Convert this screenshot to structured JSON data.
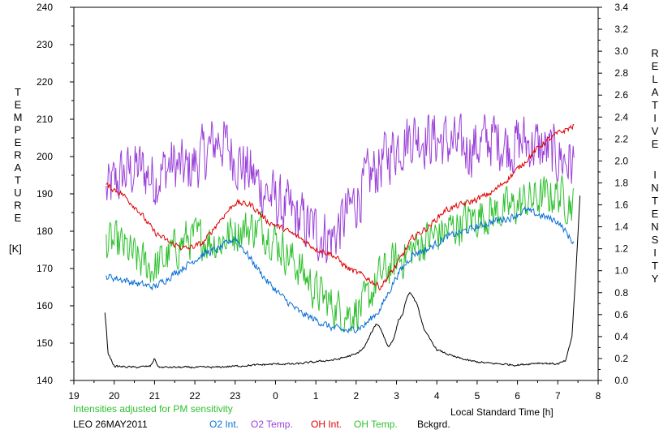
{
  "chart_data": {
    "type": "line",
    "title": "",
    "subtitle": "Intensities adjusted for PM sensitivity",
    "site_date": "LEO 26MAY2011",
    "xlabel": "Local Standard Time [h]",
    "ylabel_left_letters": [
      "T",
      "E",
      "M",
      "P",
      "E",
      "R",
      "A",
      "T",
      "U",
      "R",
      "E"
    ],
    "ylabel_left_unit": "[K]",
    "ylabel_right_words": [
      [
        "R",
        "E",
        "L",
        "A",
        "T",
        "I",
        "V",
        "E"
      ],
      [
        "I",
        "N",
        "T",
        "E",
        "N",
        "S",
        "I",
        "T",
        "Y"
      ]
    ],
    "xlim": [
      19,
      32
    ],
    "x_tick_labels": [
      "19",
      "20",
      "21",
      "22",
      "23",
      "0",
      "1",
      "2",
      "3",
      "4",
      "5",
      "6",
      "7",
      "8"
    ],
    "ylim_left": [
      140,
      240
    ],
    "y_left_ticks": [
      "140",
      "150",
      "160",
      "170",
      "180",
      "190",
      "200",
      "210",
      "220",
      "230",
      "240"
    ],
    "ylim_right": [
      0,
      3.4
    ],
    "y_right_ticks": [
      "0.0",
      "0.2",
      "0.4",
      "0.6",
      "0.8",
      "1.0",
      "1.2",
      "1.4",
      "1.6",
      "1.8",
      "2.0",
      "2.2",
      "2.4",
      "2.6",
      "2.8",
      "3.0",
      "3.2",
      "3.4"
    ],
    "grid": false,
    "series": [
      {
        "name": "O2 Int.",
        "color": "#0a6fd6",
        "axis": "right",
        "noise": 0.03,
        "x": [
          19.8,
          20.2,
          20.6,
          21.0,
          21.4,
          21.8,
          22.2,
          22.6,
          23.0,
          23.4,
          23.8,
          24.2,
          24.6,
          25.0,
          25.4,
          25.8,
          26.2,
          26.6,
          27.0,
          27.4,
          27.8,
          28.2,
          28.6,
          29.0,
          29.4,
          29.8,
          30.2,
          30.6,
          31.0,
          31.4
        ],
        "y": [
          0.95,
          0.92,
          0.88,
          0.85,
          0.95,
          1.05,
          1.15,
          1.2,
          1.3,
          1.1,
          0.9,
          0.75,
          0.62,
          0.55,
          0.48,
          0.45,
          0.5,
          0.65,
          0.95,
          1.15,
          1.2,
          1.3,
          1.35,
          1.4,
          1.45,
          1.48,
          1.55,
          1.5,
          1.45,
          1.25
        ]
      },
      {
        "name": "O2 Temp.",
        "color": "#9a40d8",
        "axis": "left",
        "noise": 7,
        "x": [
          19.8,
          20.2,
          20.6,
          21.0,
          21.4,
          21.8,
          22.2,
          22.6,
          23.0,
          23.4,
          23.8,
          24.2,
          24.6,
          25.0,
          25.4,
          25.8,
          26.2,
          26.6,
          27.0,
          27.4,
          27.8,
          28.2,
          28.6,
          29.0,
          29.4,
          29.8,
          30.2,
          30.6,
          31.0,
          31.4
        ],
        "y": [
          190,
          195,
          197,
          194,
          198,
          196,
          200,
          205,
          200,
          195,
          190,
          186,
          183,
          180,
          178,
          185,
          192,
          198,
          203,
          206,
          205,
          204,
          202,
          203,
          205,
          203,
          204,
          202,
          200,
          198
        ]
      },
      {
        "name": "OH Int.",
        "color": "#e00000",
        "axis": "right",
        "noise": 0.025,
        "x": [
          19.8,
          20.2,
          20.6,
          21.0,
          21.4,
          21.8,
          22.2,
          22.6,
          23.0,
          23.4,
          23.8,
          24.2,
          24.6,
          25.0,
          25.4,
          25.8,
          26.2,
          26.6,
          27.0,
          27.4,
          27.8,
          28.2,
          28.6,
          29.0,
          29.4,
          29.8,
          30.2,
          30.6,
          31.0,
          31.4
        ],
        "y": [
          1.78,
          1.7,
          1.55,
          1.35,
          1.25,
          1.2,
          1.25,
          1.45,
          1.62,
          1.6,
          1.45,
          1.38,
          1.3,
          1.2,
          1.15,
          1.02,
          0.95,
          0.85,
          1.05,
          1.3,
          1.4,
          1.55,
          1.6,
          1.65,
          1.72,
          1.85,
          2.0,
          2.15,
          2.25,
          2.32
        ]
      },
      {
        "name": "OH Temp.",
        "color": "#2ec02e",
        "axis": "left",
        "noise": 5,
        "x": [
          19.8,
          20.2,
          20.6,
          21.0,
          21.4,
          21.8,
          22.2,
          22.6,
          23.0,
          23.4,
          23.8,
          24.2,
          24.6,
          25.0,
          25.4,
          25.8,
          26.2,
          26.6,
          27.0,
          27.4,
          27.8,
          28.2,
          28.6,
          29.0,
          29.4,
          29.8,
          30.2,
          30.6,
          31.0,
          31.4
        ],
        "y": [
          177,
          176,
          172,
          170,
          174,
          178,
          178,
          177,
          180,
          181,
          180,
          175,
          170,
          164,
          160,
          158,
          160,
          168,
          172,
          175,
          178,
          180,
          182,
          184,
          185,
          186,
          188,
          189,
          190,
          187
        ]
      },
      {
        "name": "Bckgrd.",
        "color": "#000000",
        "axis": "right",
        "noise": 0.008,
        "x": [
          19.77,
          19.85,
          20.0,
          20.5,
          20.9,
          21.0,
          21.1,
          21.5,
          22.0,
          22.5,
          23.0,
          23.5,
          24.0,
          24.5,
          25.0,
          25.5,
          26.0,
          26.2,
          26.4,
          26.5,
          26.6,
          26.8,
          26.95,
          27.05,
          27.15,
          27.25,
          27.35,
          27.5,
          27.7,
          28.0,
          28.4,
          28.8,
          29.2,
          29.6,
          30.0,
          30.5,
          31.0,
          31.2,
          31.35,
          31.45,
          31.55
        ],
        "y": [
          0.62,
          0.25,
          0.13,
          0.12,
          0.13,
          0.2,
          0.12,
          0.12,
          0.12,
          0.12,
          0.13,
          0.14,
          0.15,
          0.15,
          0.17,
          0.19,
          0.24,
          0.3,
          0.45,
          0.52,
          0.48,
          0.3,
          0.4,
          0.55,
          0.6,
          0.75,
          0.8,
          0.7,
          0.45,
          0.28,
          0.22,
          0.18,
          0.16,
          0.15,
          0.14,
          0.16,
          0.15,
          0.18,
          0.4,
          1.0,
          1.68
        ]
      }
    ]
  }
}
